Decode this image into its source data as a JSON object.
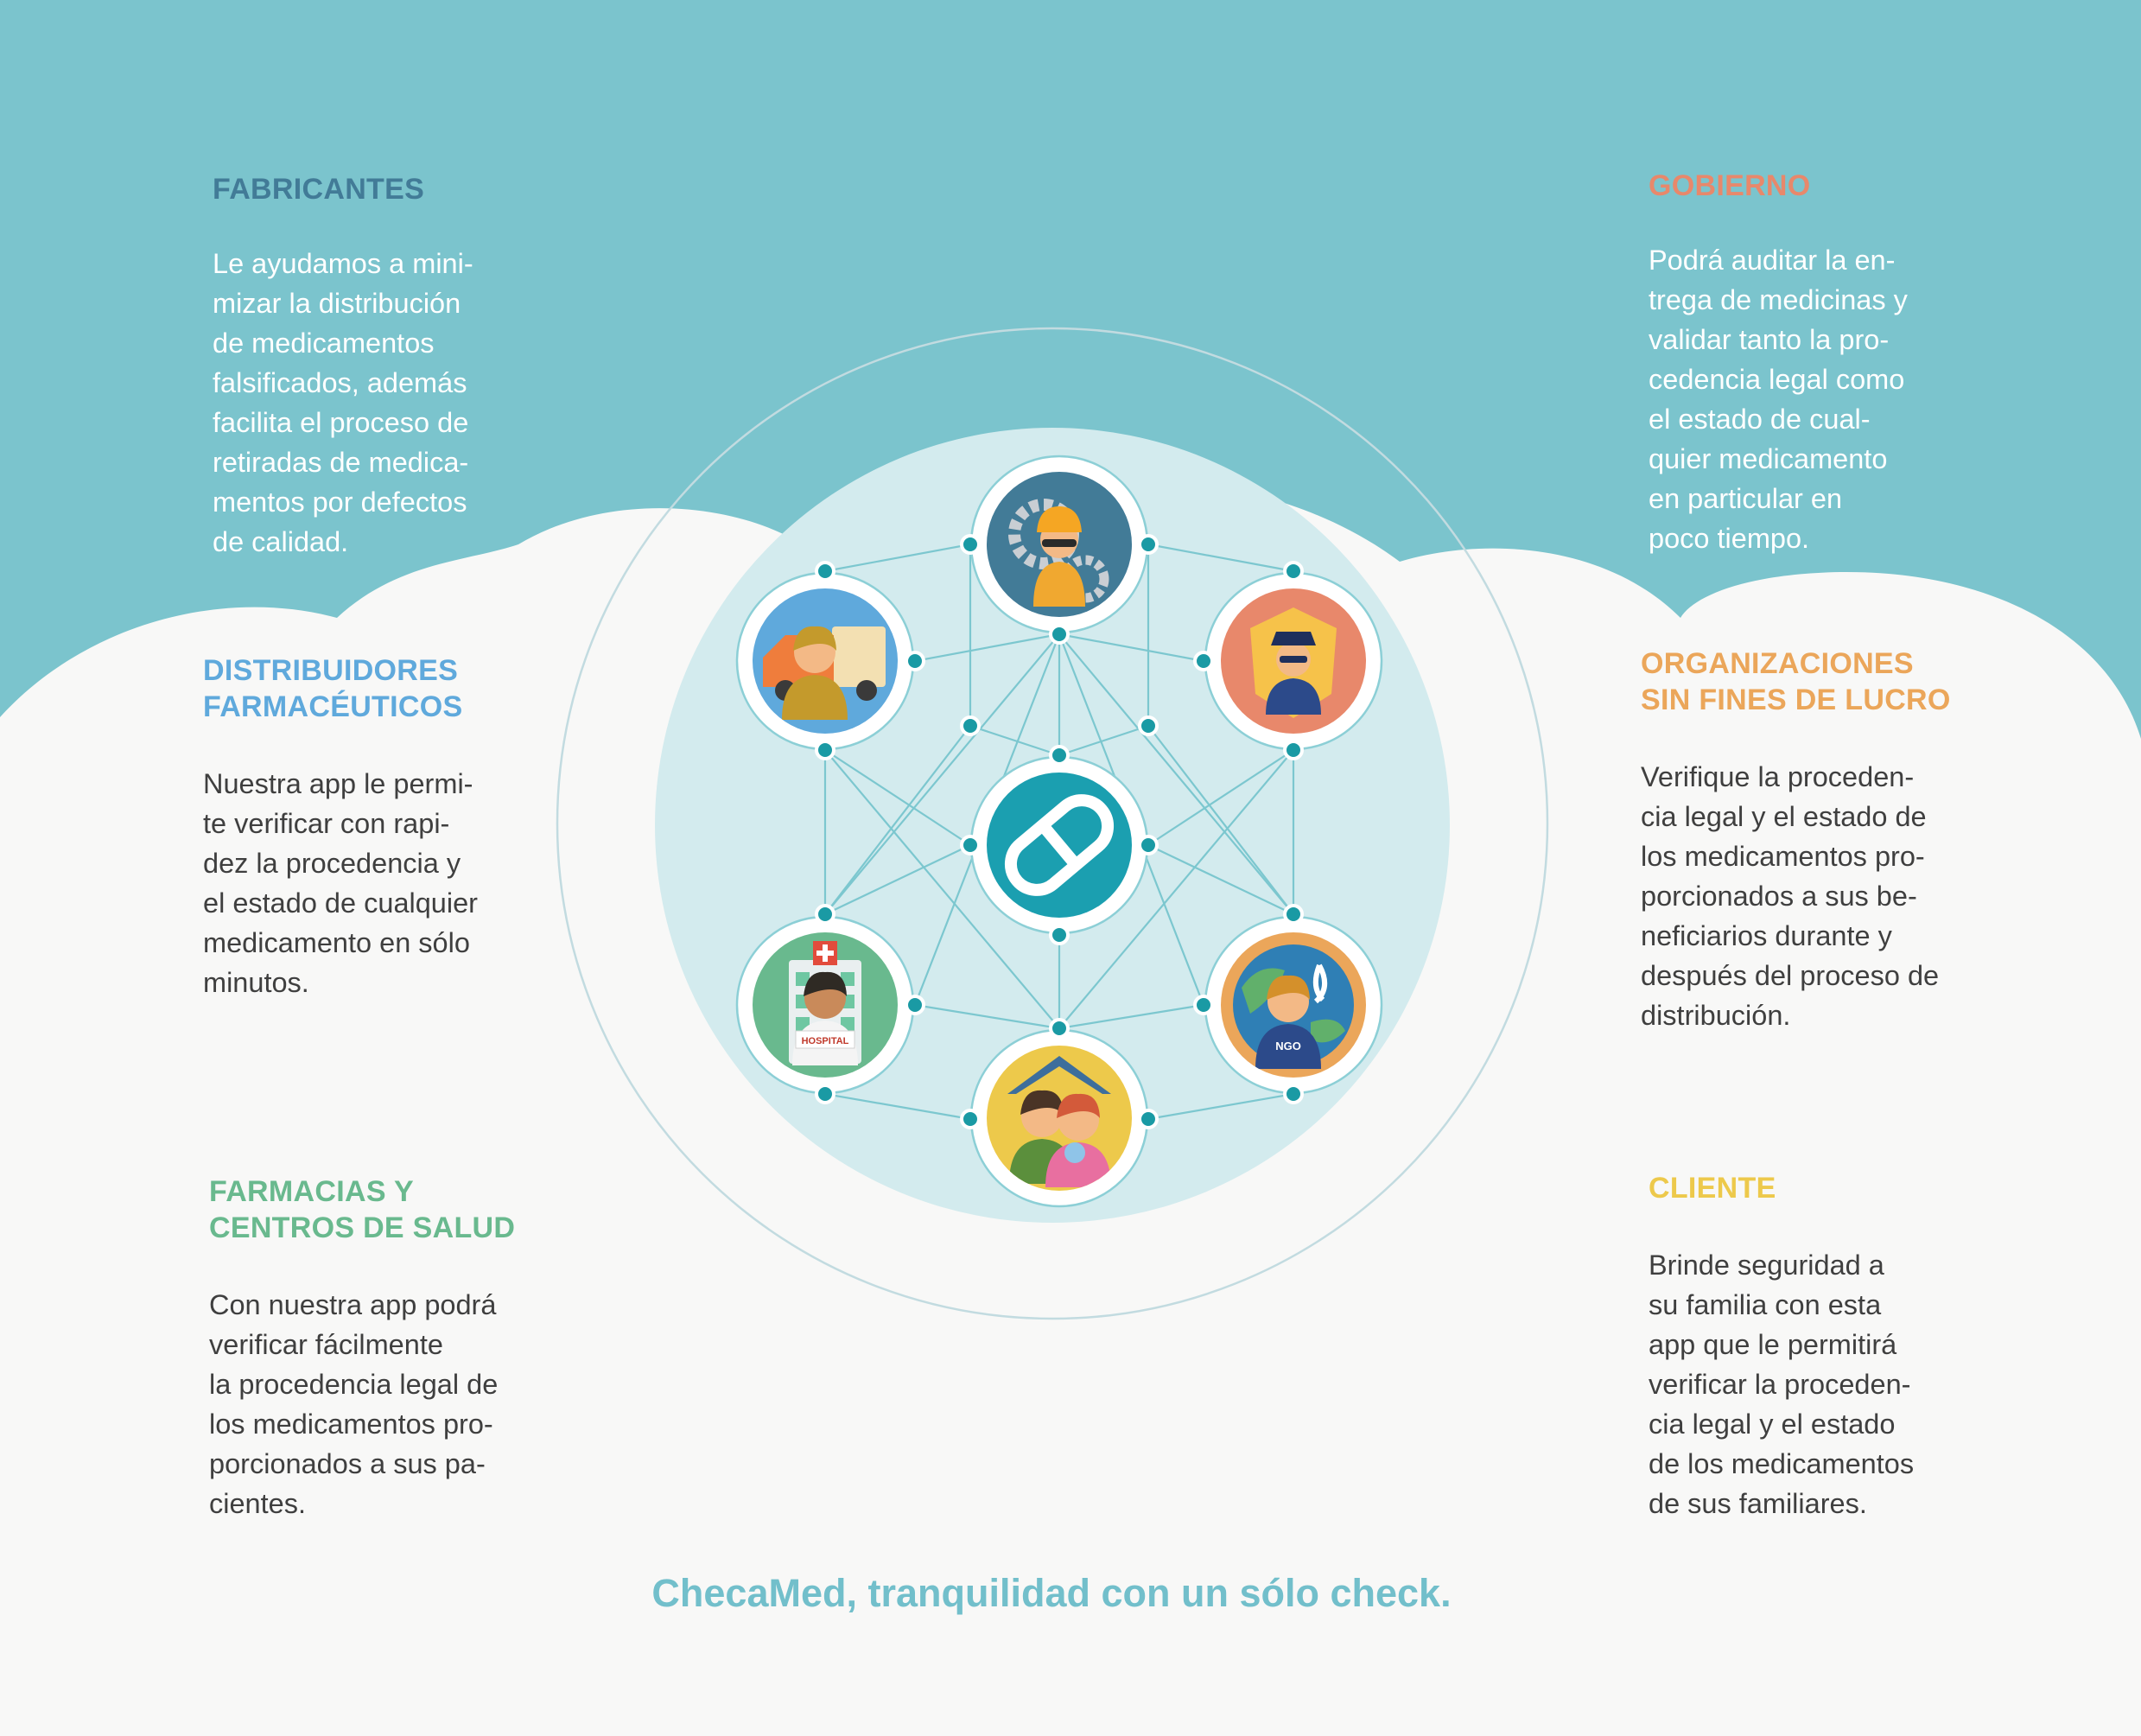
{
  "colors": {
    "top_band": "#7bc4cd",
    "background": "#f8f8f7",
    "inner_circle": "#d3ebee",
    "network_line": "#7cc7cf",
    "node_dot": "#1a9aa4",
    "fabricantes": "#427b97",
    "gobierno": "#e8886b",
    "distribuidores": "#5fa9dc",
    "organizaciones": "#eba65a",
    "farmacias": "#69b98e",
    "cliente": "#edc94b",
    "tagline": "#72bfcb"
  },
  "sections": {
    "fabricantes": {
      "title": "FABRICANTES",
      "body": "Le ayudamos a mini-\nmizar la distribución\nde medicamentos\nfalsificados, además\nfacilita el proceso de\nretiradas de medica-\nmentos por defectos\nde calidad."
    },
    "gobierno": {
      "title": "GOBIERNO",
      "body": "Podrá auditar la en-\ntrega de medicinas y\nvalidar tanto la pro-\ncedencia legal como\nel estado de cual-\nquier medicamento\nen particular en\npoco tiempo."
    },
    "distribuidores": {
      "title": "DISTRIBUIDORES\nFARMACÉUTICOS",
      "body": "Nuestra app le permi-\nte verificar con rapi-\ndez la procedencia y\nel estado de cualquier\nmedicamento en sólo\nminutos."
    },
    "organizaciones": {
      "title": "ORGANIZACIONES\nSIN FINES DE LUCRO",
      "body": "Verifique la proceden-\ncia legal y el estado de\nlos medicamentos pro-\nporcionados a sus be-\nneficiarios durante y\ndespués del proceso de\ndistribución."
    },
    "farmacias": {
      "title": "FARMACIAS Y\nCENTROS DE SALUD",
      "body": "Con nuestra app podrá\nverificar fácilmente\nla procedencia legal de\nlos medicamentos pro-\nporcionados a sus pa-\ncientes."
    },
    "cliente": {
      "title": "CLIENTE",
      "body": "Brinde seguridad a\nsu familia con esta\napp que le permitirá\nverificar la proceden-\ncia legal y el estado\nde los medicamentos\nde sus familiares."
    }
  },
  "icons": {
    "center": "checamed-logo-icon",
    "fabricantes": "worker-gears-icon",
    "gobierno": "police-officer-icon",
    "distribuidores": "delivery-truck-icon",
    "organizaciones": "ngo-globe-icon",
    "farmacias": "hospital-nurse-icon",
    "cliente": "family-home-icon"
  },
  "badges": {
    "hospital": "HOSPITAL",
    "ngo": "NGO"
  },
  "tagline": "ChecaMed, tranquilidad con un sólo check."
}
